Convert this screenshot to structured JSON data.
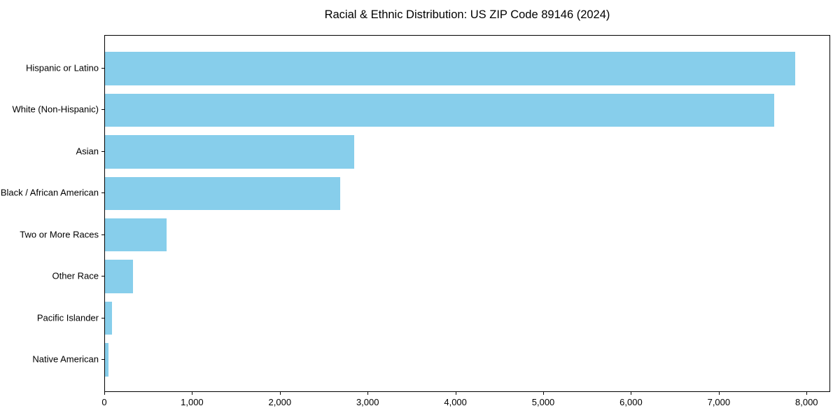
{
  "chart_data": {
    "type": "bar",
    "orientation": "horizontal",
    "title": "Racial & Ethnic Distribution: US ZIP Code 89146 (2024)",
    "categories": [
      "Hispanic or Latino",
      "White (Non-Hispanic)",
      "Asian",
      "Black / African American",
      "Two or More Races",
      "Other Race",
      "Pacific Islander",
      "Native American"
    ],
    "values": [
      7860,
      7620,
      2840,
      2680,
      700,
      320,
      80,
      40
    ],
    "xlabel": "",
    "ylabel": "",
    "xlim": [
      0,
      8253
    ],
    "x_ticks": [
      0,
      1000,
      2000,
      3000,
      4000,
      5000,
      6000,
      7000,
      8000
    ],
    "x_tick_labels": [
      "0",
      "1,000",
      "2,000",
      "3,000",
      "4,000",
      "5,000",
      "6,000",
      "7,000",
      "8,000"
    ],
    "bar_color": "#87CEEB",
    "axis_color": "#000000",
    "text_color": "#000000",
    "background_color": "#ffffff",
    "grid": false,
    "legend": false
  }
}
